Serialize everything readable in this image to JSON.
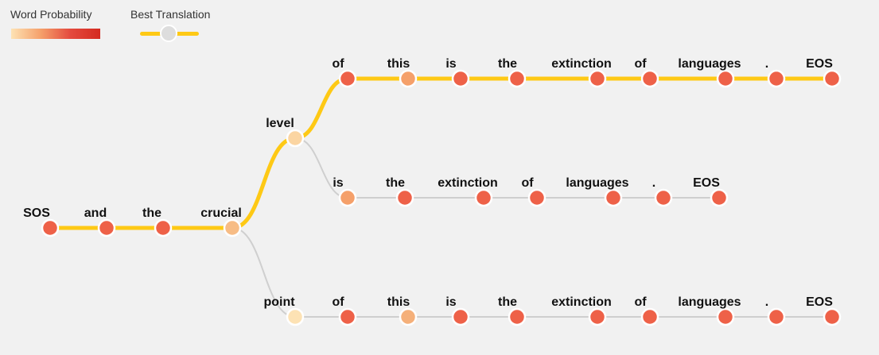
{
  "legend": {
    "word_probability_label": "Word Probability",
    "best_translation_label": "Best Translation",
    "colors": {
      "best_path": "#fec915",
      "alt_path": "#cfcfcf",
      "low_prob": "#fde2b4",
      "high_prob": "#ee6148"
    }
  },
  "beams": {
    "shared": [
      {
        "word": "SOS",
        "color": "#ee6148"
      },
      {
        "word": "and",
        "color": "#ee6148"
      },
      {
        "word": "the",
        "color": "#ee6148"
      },
      {
        "word": "crucial",
        "color": "#f7bc85"
      }
    ],
    "branches": [
      {
        "best": true,
        "words": [
          {
            "word": "level",
            "color": "#fbd5a2"
          },
          {
            "word": "of",
            "color": "#ee6148"
          },
          {
            "word": "this",
            "color": "#f5a06a"
          },
          {
            "word": "is",
            "color": "#ee6148"
          },
          {
            "word": "the",
            "color": "#ee6148"
          },
          {
            "word": "extinction",
            "color": "#ee6148"
          },
          {
            "word": "of",
            "color": "#ee6148"
          },
          {
            "word": "languages",
            "color": "#ee6148"
          },
          {
            "word": ".",
            "color": "#ee6148"
          },
          {
            "word": "EOS",
            "color": "#ee6148"
          }
        ],
        "fork_after": 0
      },
      {
        "best": false,
        "words": [
          {
            "word": "is",
            "color": "#f5a06a"
          },
          {
            "word": "the",
            "color": "#ee6148"
          },
          {
            "word": "extinction",
            "color": "#ee6148"
          },
          {
            "word": "of",
            "color": "#ee6148"
          },
          {
            "word": "languages",
            "color": "#ee6148"
          },
          {
            "word": ".",
            "color": "#ee6148"
          },
          {
            "word": "EOS",
            "color": "#ee6148"
          }
        ],
        "parent": "level"
      },
      {
        "best": false,
        "words": [
          {
            "word": "point",
            "color": "#fde2b4"
          },
          {
            "word": "of",
            "color": "#ee6148"
          },
          {
            "word": "this",
            "color": "#f5b07a"
          },
          {
            "word": "is",
            "color": "#ee6148"
          },
          {
            "word": "the",
            "color": "#ee6148"
          },
          {
            "word": "extinction",
            "color": "#ee6148"
          },
          {
            "word": "of",
            "color": "#ee6148"
          },
          {
            "word": "languages",
            "color": "#ee6148"
          },
          {
            "word": ".",
            "color": "#ee6148"
          },
          {
            "word": "EOS",
            "color": "#ee6148"
          }
        ]
      }
    ]
  }
}
